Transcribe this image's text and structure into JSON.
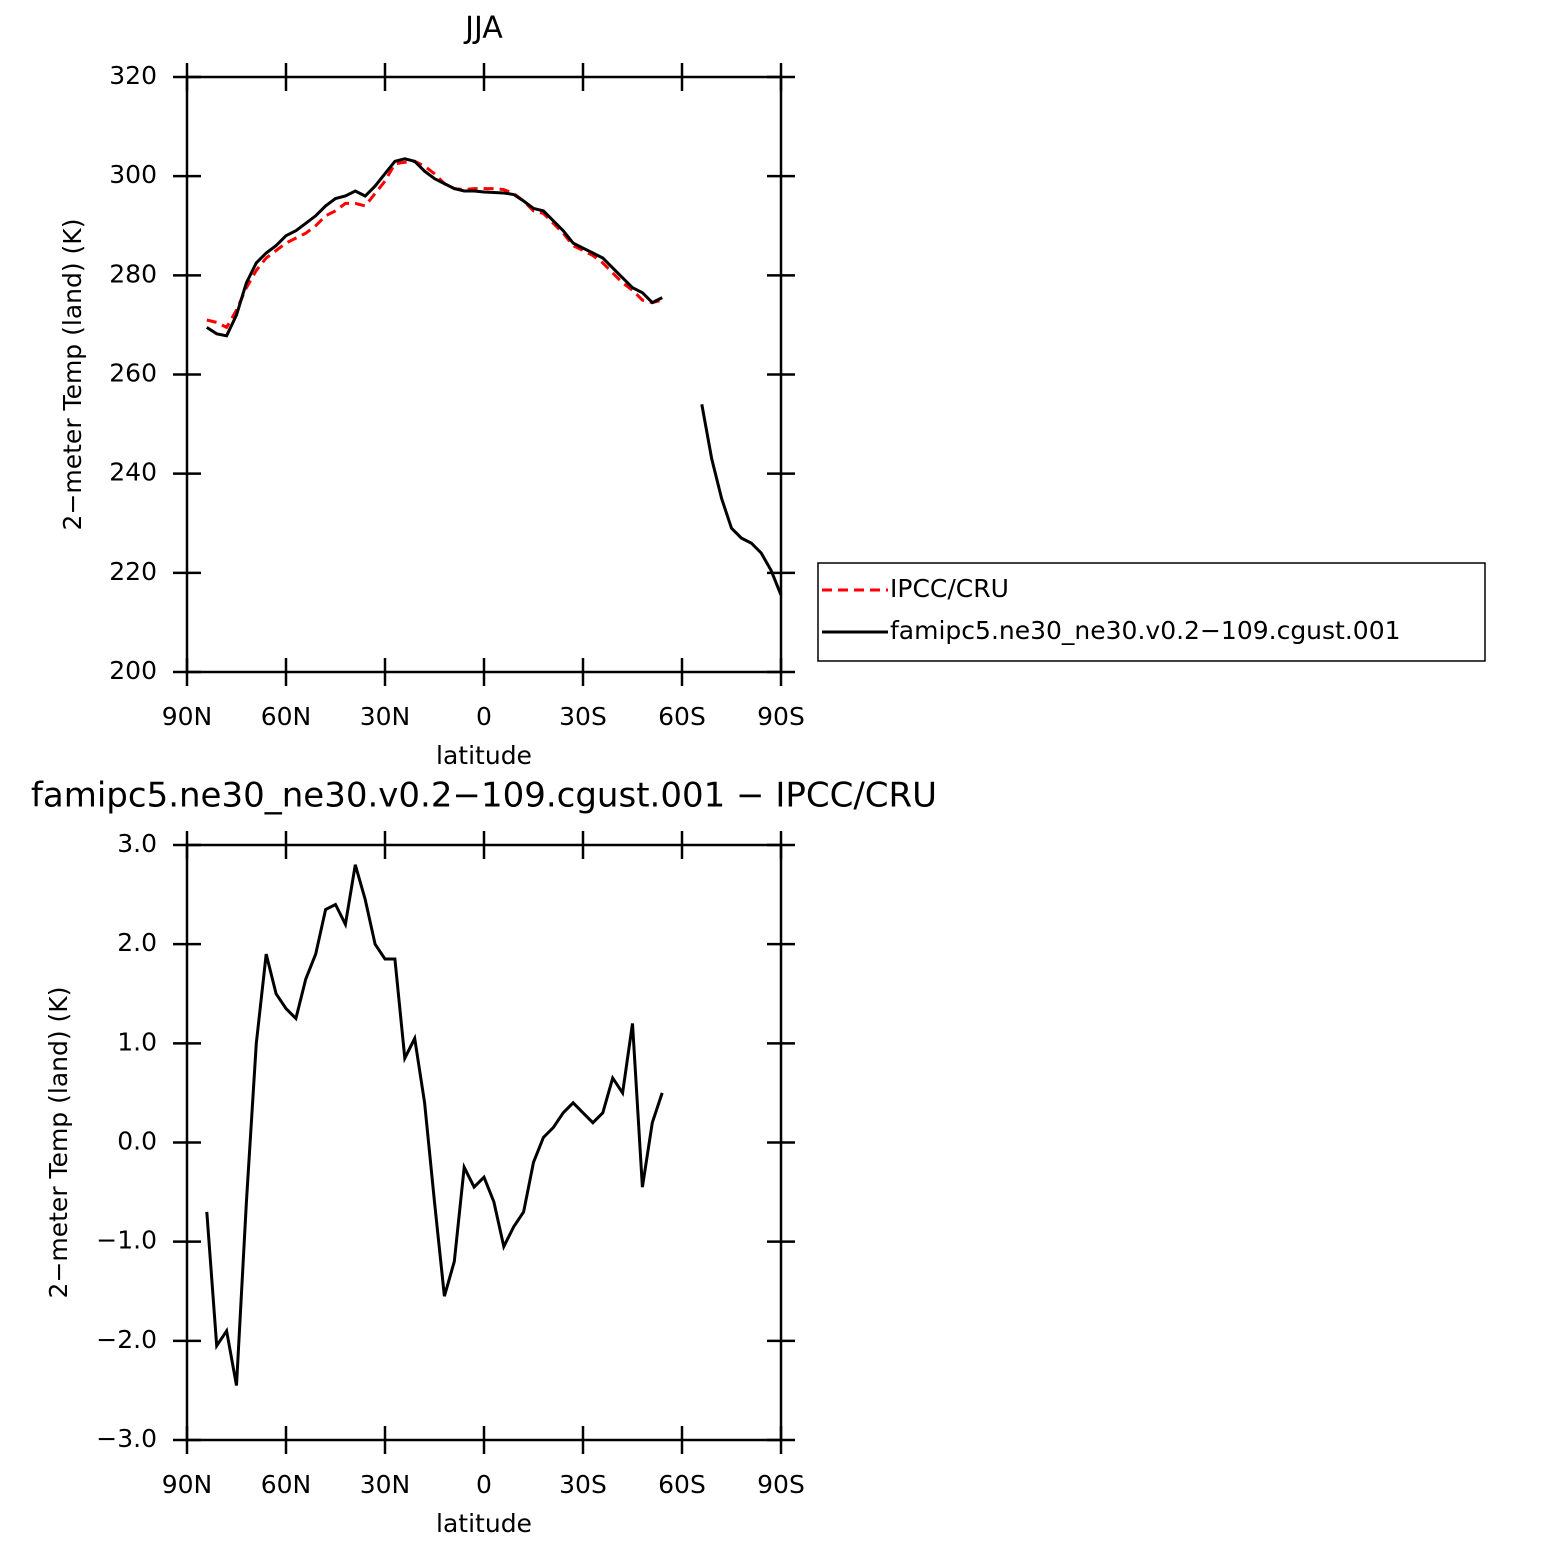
{
  "chart_data": [
    {
      "type": "line",
      "title": "JJA",
      "xlabel": "latitude",
      "ylabel": "2−meter Temp (land) (K)",
      "x": [
        84,
        81,
        78,
        75,
        72,
        69,
        66,
        63,
        60,
        57,
        54,
        51,
        48,
        45,
        42,
        39,
        36,
        33,
        30,
        27,
        24,
        21,
        18,
        15,
        12,
        9,
        6,
        3,
        0,
        -3,
        -6,
        -9,
        -12,
        -15,
        -18,
        -21,
        -24,
        -27,
        -30,
        -33,
        -36,
        -39,
        -42,
        -45,
        -48,
        -51,
        -54,
        -57,
        -60,
        -63,
        -66,
        -69,
        -72,
        -75,
        -78,
        -81,
        -84,
        -87,
        -90
      ],
      "series": [
        {
          "name": "IPCC/CRU",
          "color": "#ff0000",
          "linestyle": "dashed",
          "values": [
            271,
            270.5,
            269.5,
            273,
            277.5,
            281,
            283.5,
            285,
            286.5,
            287.5,
            288.5,
            290,
            292,
            293,
            294.5,
            294.5,
            294,
            296.5,
            299,
            302.5,
            302.8,
            303,
            302,
            300.5,
            298.5,
            297.5,
            297.3,
            297.5,
            297.5,
            297.5,
            297.3,
            296.5,
            295,
            293,
            292.5,
            290.5,
            288.5,
            286,
            285,
            284,
            282.5,
            280.5,
            278.5,
            277,
            275,
            274.5,
            275,
            null,
            null,
            null,
            null,
            null,
            null,
            null,
            null,
            null,
            null,
            null,
            null
          ]
        },
        {
          "name": "famipc5.ne30_ne30.v0.2−109.cgust.001",
          "color": "#000000",
          "linestyle": "solid",
          "values": [
            269.5,
            268.2,
            267.8,
            272,
            278.5,
            282.5,
            284.5,
            286,
            288,
            289,
            290.5,
            292,
            294,
            295.5,
            296,
            297,
            296,
            298,
            300.5,
            303,
            303.5,
            303,
            301,
            299.5,
            298.5,
            297.5,
            297,
            297,
            296.8,
            296.7,
            296.6,
            296.3,
            295,
            293.5,
            293,
            291,
            289,
            286.5,
            285.5,
            284.5,
            283.5,
            281.5,
            279.5,
            277.5,
            276.5,
            274.5,
            275.5,
            null,
            null,
            null,
            254,
            243,
            235,
            229,
            227,
            226,
            224,
            220.5,
            215.5
          ]
        }
      ],
      "xlim": [
        90,
        -90
      ],
      "xticks": [
        {
          "value": 90,
          "label": "90N"
        },
        {
          "value": 60,
          "label": "60N"
        },
        {
          "value": 30,
          "label": "30N"
        },
        0,
        {
          "value": -30,
          "label": "30S"
        },
        {
          "value": -60,
          "label": "60S"
        },
        {
          "value": -90,
          "label": "90S"
        }
      ],
      "ylim": [
        200,
        320
      ],
      "yticks": [
        200,
        220,
        240,
        260,
        280,
        300,
        320
      ],
      "legend": "right"
    },
    {
      "type": "line",
      "title": "famipc5.ne30_ne30.v0.2−109.cgust.001 − IPCC/CRU",
      "xlabel": "latitude",
      "ylabel": "2−meter Temp (land) (K)",
      "x": [
        84,
        81,
        78,
        75,
        72,
        69,
        66,
        63,
        60,
        57,
        54,
        51,
        48,
        45,
        42,
        39,
        36,
        33,
        30,
        27,
        24,
        21,
        18,
        15,
        12,
        9,
        6,
        3,
        0,
        -3,
        -6,
        -9,
        -12,
        -15,
        -18,
        -21,
        -24,
        -27,
        -30,
        -33,
        -36,
        -39,
        -42,
        -45,
        -48,
        -51,
        -54
      ],
      "series": [
        {
          "color": "#000000",
          "linestyle": "solid",
          "values": [
            -0.7,
            -2.05,
            -1.9,
            -2.45,
            -0.6,
            1.0,
            1.9,
            1.5,
            1.35,
            1.25,
            1.65,
            1.9,
            2.35,
            2.4,
            2.2,
            2.8,
            2.45,
            2.0,
            1.85,
            1.85,
            0.85,
            1.05,
            0.4,
            -0.6,
            -1.55,
            -1.2,
            -0.25,
            -0.45,
            -0.35,
            -0.6,
            -1.05,
            -0.85,
            -0.7,
            -0.2,
            0.05,
            0.15,
            0.3,
            0.4,
            0.3,
            0.2,
            0.3,
            0.65,
            0.5,
            1.2,
            -0.45,
            0.2,
            0.5
          ]
        }
      ],
      "xlim": [
        90,
        -90
      ],
      "xticks": [
        {
          "value": 90,
          "label": "90N"
        },
        {
          "value": 60,
          "label": "60N"
        },
        {
          "value": 30,
          "label": "30N"
        },
        0,
        {
          "value": -30,
          "label": "30S"
        },
        {
          "value": -60,
          "label": "60S"
        },
        {
          "value": -90,
          "label": "90S"
        }
      ],
      "ylim": [
        -3,
        3
      ],
      "yticks": [
        {
          "value": -3,
          "label": "−3.0"
        },
        {
          "value": -2,
          "label": "−2.0"
        },
        {
          "value": -1,
          "label": "−1.0"
        },
        {
          "value": 0,
          "label": "0.0"
        },
        {
          "value": 1,
          "label": "1.0"
        },
        {
          "value": 2,
          "label": "2.0"
        },
        {
          "value": 3,
          "label": "3.0"
        }
      ]
    }
  ]
}
